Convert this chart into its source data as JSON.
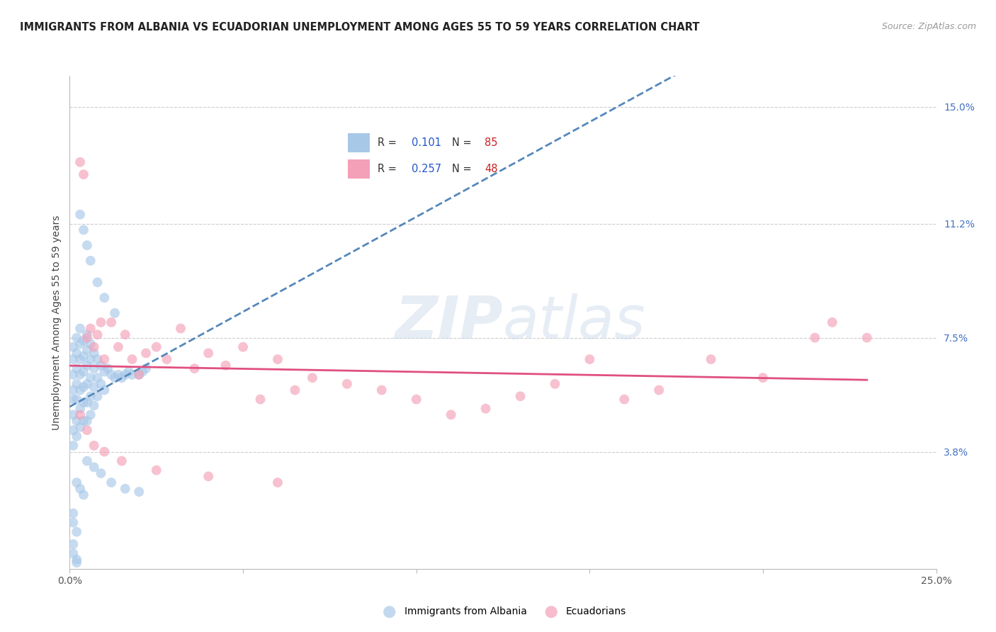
{
  "title": "IMMIGRANTS FROM ALBANIA VS ECUADORIAN UNEMPLOYMENT AMONG AGES 55 TO 59 YEARS CORRELATION CHART",
  "source": "Source: ZipAtlas.com",
  "ylabel": "Unemployment Among Ages 55 to 59 years",
  "xlim": [
    0,
    0.25
  ],
  "ylim": [
    0.0,
    0.16
  ],
  "right_yticks": [
    0.038,
    0.075,
    0.112,
    0.15
  ],
  "right_yticklabels": [
    "3.8%",
    "7.5%",
    "11.2%",
    "15.0%"
  ],
  "color_blue": "#a8c8e8",
  "color_pink": "#f4a0b8",
  "color_blue_line": "#5588bb",
  "color_pink_line": "#e05080",
  "watermark": "ZIPatlas",
  "albania_x": [
    0.001,
    0.001,
    0.001,
    0.001,
    0.001,
    0.001,
    0.001,
    0.001,
    0.002,
    0.002,
    0.002,
    0.002,
    0.002,
    0.002,
    0.002,
    0.003,
    0.003,
    0.003,
    0.003,
    0.003,
    0.003,
    0.003,
    0.004,
    0.004,
    0.004,
    0.004,
    0.004,
    0.004,
    0.005,
    0.005,
    0.005,
    0.005,
    0.005,
    0.005,
    0.006,
    0.006,
    0.006,
    0.006,
    0.006,
    0.007,
    0.007,
    0.007,
    0.007,
    0.008,
    0.008,
    0.008,
    0.009,
    0.009,
    0.01,
    0.01,
    0.011,
    0.012,
    0.013,
    0.014,
    0.015,
    0.016,
    0.017,
    0.018,
    0.02,
    0.021,
    0.022,
    0.003,
    0.004,
    0.005,
    0.006,
    0.008,
    0.01,
    0.013,
    0.002,
    0.003,
    0.004,
    0.001,
    0.001,
    0.002,
    0.005,
    0.007,
    0.009,
    0.012,
    0.016,
    0.02,
    0.001,
    0.001,
    0.002,
    0.002
  ],
  "albania_y": [
    0.072,
    0.068,
    0.063,
    0.058,
    0.055,
    0.05,
    0.045,
    0.04,
    0.075,
    0.07,
    0.065,
    0.06,
    0.055,
    0.048,
    0.043,
    0.078,
    0.073,
    0.068,
    0.063,
    0.058,
    0.052,
    0.046,
    0.074,
    0.069,
    0.064,
    0.059,
    0.054,
    0.048,
    0.076,
    0.071,
    0.066,
    0.06,
    0.054,
    0.048,
    0.073,
    0.068,
    0.062,
    0.056,
    0.05,
    0.07,
    0.065,
    0.059,
    0.053,
    0.068,
    0.062,
    0.056,
    0.066,
    0.06,
    0.064,
    0.058,
    0.065,
    0.063,
    0.062,
    0.063,
    0.062,
    0.063,
    0.064,
    0.063,
    0.063,
    0.064,
    0.065,
    0.115,
    0.11,
    0.105,
    0.1,
    0.093,
    0.088,
    0.083,
    0.028,
    0.026,
    0.024,
    0.018,
    0.015,
    0.012,
    0.035,
    0.033,
    0.031,
    0.028,
    0.026,
    0.025,
    0.008,
    0.005,
    0.003,
    0.002
  ],
  "ecuador_x": [
    0.003,
    0.004,
    0.005,
    0.006,
    0.007,
    0.008,
    0.009,
    0.01,
    0.012,
    0.014,
    0.016,
    0.018,
    0.02,
    0.022,
    0.025,
    0.028,
    0.032,
    0.036,
    0.04,
    0.045,
    0.05,
    0.055,
    0.06,
    0.065,
    0.07,
    0.08,
    0.09,
    0.1,
    0.11,
    0.12,
    0.13,
    0.14,
    0.15,
    0.16,
    0.17,
    0.185,
    0.2,
    0.215,
    0.22,
    0.23,
    0.003,
    0.005,
    0.007,
    0.01,
    0.015,
    0.025,
    0.04,
    0.06
  ],
  "ecuador_y": [
    0.132,
    0.128,
    0.075,
    0.078,
    0.072,
    0.076,
    0.08,
    0.068,
    0.08,
    0.072,
    0.076,
    0.068,
    0.063,
    0.07,
    0.072,
    0.068,
    0.078,
    0.065,
    0.07,
    0.066,
    0.072,
    0.055,
    0.068,
    0.058,
    0.062,
    0.06,
    0.058,
    0.055,
    0.05,
    0.052,
    0.056,
    0.06,
    0.068,
    0.055,
    0.058,
    0.068,
    0.062,
    0.075,
    0.08,
    0.075,
    0.05,
    0.045,
    0.04,
    0.038,
    0.035,
    0.032,
    0.03,
    0.028
  ]
}
